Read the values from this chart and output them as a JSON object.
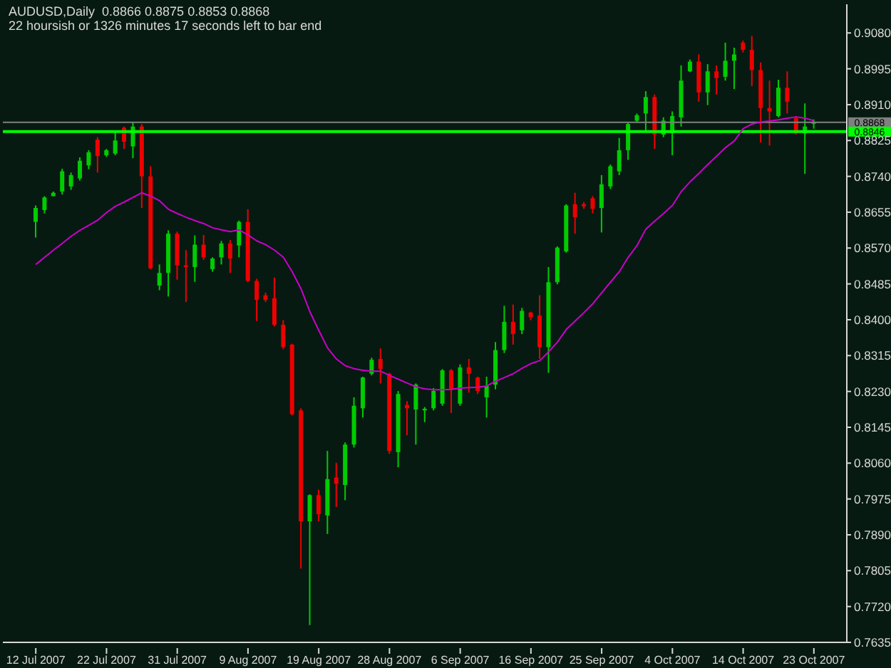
{
  "chart_data": {
    "type": "candlestick",
    "title": "AUDUSD,Daily  0.8866 0.8875 0.8853 0.8868",
    "subtitle": "22 hoursish or 1326 minutes 17 seconds left to bar end",
    "categories": [
      "12 Jul 2007",
      null,
      null,
      null,
      null,
      null,
      null,
      null,
      "22 Jul 2007",
      null,
      null,
      null,
      null,
      null,
      null,
      null,
      "31 Jul 2007",
      null,
      null,
      null,
      null,
      null,
      null,
      null,
      "9 Aug 2007",
      null,
      null,
      null,
      null,
      null,
      null,
      null,
      "19 Aug 2007",
      null,
      null,
      null,
      null,
      null,
      null,
      null,
      "28 Aug 2007",
      null,
      null,
      null,
      null,
      null,
      null,
      null,
      "6 Sep 2007",
      null,
      null,
      null,
      null,
      null,
      null,
      null,
      "16 Sep 2007",
      null,
      null,
      null,
      null,
      null,
      null,
      null,
      "25 Sep 2007",
      null,
      null,
      null,
      null,
      null,
      null,
      null,
      "4 Oct 2007",
      null,
      null,
      null,
      null,
      null,
      null,
      null,
      "14 Oct 2007",
      null,
      null,
      null,
      null,
      null,
      null,
      null,
      "23 Oct 2007"
    ],
    "series": [
      {
        "ohlc": [
          [
            0.8632,
            0.8671,
            0.8595,
            0.8665
          ],
          [
            0.866,
            0.8693,
            0.8652,
            0.869
          ],
          [
            0.8693,
            0.8704,
            0.8693,
            0.8701
          ],
          [
            0.8704,
            0.8758,
            0.8697,
            0.8752
          ],
          [
            0.8716,
            0.8749,
            0.8708,
            0.8743
          ],
          [
            0.8735,
            0.8785,
            0.873,
            0.8777
          ],
          [
            0.8766,
            0.8802,
            0.8757,
            0.8797
          ],
          [
            0.8827,
            0.8833,
            0.8749,
            0.8788
          ],
          [
            0.879,
            0.8805,
            0.8786,
            0.8802
          ],
          [
            0.8794,
            0.8844,
            0.879,
            0.8825
          ],
          [
            0.8855,
            0.8858,
            0.8805,
            0.8822
          ],
          [
            0.8811,
            0.8869,
            0.8783,
            0.8858
          ],
          [
            0.8858,
            0.8864,
            0.8665,
            0.874
          ],
          [
            0.874,
            0.8764,
            0.852,
            0.8522
          ],
          [
            0.8481,
            0.8531,
            0.847,
            0.8511
          ],
          [
            0.8511,
            0.8612,
            0.8455,
            0.8604
          ],
          [
            0.8604,
            0.8609,
            0.8495,
            0.8529
          ],
          [
            0.8529,
            0.8565,
            0.8442,
            0.8525
          ],
          [
            0.8525,
            0.86,
            0.849,
            0.8578
          ],
          [
            0.8578,
            0.8601,
            0.8542,
            0.8548
          ],
          [
            0.852,
            0.8548,
            0.8514,
            0.8545
          ],
          [
            0.8548,
            0.8587,
            0.8531,
            0.8581
          ],
          [
            0.8581,
            0.8589,
            0.8511,
            0.8545
          ],
          [
            0.8576,
            0.8635,
            0.8548,
            0.8632
          ],
          [
            0.8632,
            0.8662,
            0.8489,
            0.8492
          ],
          [
            0.8492,
            0.8497,
            0.8397,
            0.8447
          ],
          [
            0.8458,
            0.8464,
            0.8442,
            0.8447
          ],
          [
            0.8451,
            0.85,
            0.8384,
            0.8388
          ],
          [
            0.8388,
            0.8399,
            0.833,
            0.8335
          ],
          [
            0.8341,
            0.8343,
            0.8173,
            0.8176
          ],
          [
            0.8185,
            0.819,
            0.781,
            0.7922
          ],
          [
            0.7922,
            0.7986,
            0.7676,
            0.7984
          ],
          [
            0.7984,
            0.7997,
            0.7922,
            0.7939
          ],
          [
            0.7936,
            0.8089,
            0.7892,
            0.8022
          ],
          [
            0.8026,
            0.8061,
            0.7956,
            0.8011
          ],
          [
            0.8008,
            0.8109,
            0.7972,
            0.8104
          ],
          [
            0.8104,
            0.8216,
            0.8097,
            0.8196
          ],
          [
            0.819,
            0.8265,
            0.8168,
            0.8263
          ],
          [
            0.8272,
            0.831,
            0.8268,
            0.8305
          ],
          [
            0.8307,
            0.8332,
            0.8249,
            0.8283
          ],
          [
            0.8272,
            0.8274,
            0.8082,
            0.8089
          ],
          [
            0.8086,
            0.8231,
            0.805,
            0.8224
          ],
          [
            0.8198,
            0.8207,
            0.8126,
            0.819
          ],
          [
            0.8187,
            0.8249,
            0.8104,
            0.8246
          ],
          [
            0.8185,
            0.8193,
            0.8157,
            0.8189
          ],
          [
            0.819,
            0.8238,
            0.8185,
            0.8231
          ],
          [
            0.8201,
            0.8283,
            0.8196,
            0.828
          ],
          [
            0.828,
            0.8283,
            0.8179,
            0.8235
          ],
          [
            0.8201,
            0.8294,
            0.8196,
            0.8287
          ],
          [
            0.8287,
            0.8307,
            0.8227,
            0.8272
          ],
          [
            0.8263,
            0.8265,
            0.8224,
            0.8231
          ],
          [
            0.8216,
            0.8265,
            0.8168,
            0.8243
          ],
          [
            0.8246,
            0.8347,
            0.8235,
            0.8328
          ],
          [
            0.8328,
            0.8433,
            0.8321,
            0.8395
          ],
          [
            0.8395,
            0.8436,
            0.8341,
            0.8366
          ],
          [
            0.8375,
            0.8428,
            0.8366,
            0.8421
          ],
          [
            0.8417,
            0.8419,
            0.8399,
            0.8406
          ],
          [
            0.841,
            0.8458,
            0.8307,
            0.8335
          ],
          [
            0.8335,
            0.8525,
            0.8274,
            0.8489
          ],
          [
            0.8489,
            0.8574,
            0.8484,
            0.8571
          ],
          [
            0.8562,
            0.8674,
            0.8559,
            0.8671
          ],
          [
            0.8674,
            0.8701,
            0.8604,
            0.8643
          ],
          [
            0.8674,
            0.8679,
            0.8663,
            0.8669
          ],
          [
            0.8688,
            0.8693,
            0.8652,
            0.8663
          ],
          [
            0.8665,
            0.8743,
            0.8607,
            0.8721
          ],
          [
            0.8716,
            0.8768,
            0.871,
            0.8764
          ],
          [
            0.8752,
            0.8831,
            0.8743,
            0.8802
          ],
          [
            0.8802,
            0.8869,
            0.8779,
            0.8864
          ],
          [
            0.8872,
            0.8889,
            0.8869,
            0.8885
          ],
          [
            0.8889,
            0.8942,
            0.8846,
            0.8928
          ],
          [
            0.8928,
            0.8934,
            0.8805,
            0.8839
          ],
          [
            0.8839,
            0.888,
            0.8833,
            0.8872
          ],
          [
            0.8842,
            0.8894,
            0.879,
            0.8883
          ],
          [
            0.888,
            0.9003,
            0.8858,
            0.8967
          ],
          [
            0.8989,
            0.9017,
            0.8987,
            0.9012
          ],
          [
            0.9012,
            0.9029,
            0.8917,
            0.8939
          ],
          [
            0.8939,
            0.9006,
            0.8909,
            0.8989
          ],
          [
            0.8989,
            0.9003,
            0.8934,
            0.8973
          ],
          [
            0.8976,
            0.9057,
            0.8967,
            0.9014
          ],
          [
            0.9014,
            0.9045,
            0.8947,
            0.9029
          ],
          [
            0.9057,
            0.9062,
            0.9034,
            0.904
          ],
          [
            0.904,
            0.9073,
            0.8954,
            0.8992
          ],
          [
            0.8992,
            0.901,
            0.882,
            0.8902
          ],
          [
            0.8902,
            0.8967,
            0.8813,
            0.8894
          ],
          [
            0.8883,
            0.8969,
            0.888,
            0.895
          ],
          [
            0.895,
            0.8989,
            0.8889,
            0.8917
          ],
          [
            0.8878,
            0.8883,
            0.8839,
            0.8842
          ],
          [
            0.8842,
            0.8913,
            0.8746,
            0.8858
          ],
          [
            0.8866,
            0.8875,
            0.8853,
            0.8868
          ]
        ],
        "colors": [
          "#00cc00",
          "#00cc00",
          "#00cc00",
          "#00cc00",
          "#00cc00",
          "#00cc00",
          "#00cc00",
          "#ee0000",
          "#00cc00",
          "#00cc00",
          "#ee0000",
          "#00cc00",
          "#ee0000",
          "#ee0000",
          "#00cc00",
          "#00cc00",
          "#ee0000",
          "#ee0000",
          "#00cc00",
          "#ee0000",
          "#00cc00",
          "#00cc00",
          "#ee0000",
          "#00cc00",
          "#ee0000",
          "#ee0000",
          "#ee0000",
          "#ee0000",
          "#ee0000",
          "#ee0000",
          "#ee0000",
          "#00cc00",
          "#ee0000",
          "#00cc00",
          "#ee0000",
          "#00cc00",
          "#00cc00",
          "#00cc00",
          "#00cc00",
          "#ee0000",
          "#ee0000",
          "#00cc00",
          "#ee0000",
          "#00cc00",
          "#00cc00",
          "#00cc00",
          "#00cc00",
          "#ee0000",
          "#00cc00",
          "#ee0000",
          "#ee0000",
          "#00cc00",
          "#00cc00",
          "#00cc00",
          "#ee0000",
          "#00cc00",
          "#ee0000",
          "#ee0000",
          "#00cc00",
          "#00cc00",
          "#00cc00",
          "#ee0000",
          "#ee0000",
          "#ee0000",
          "#00cc00",
          "#00cc00",
          "#00cc00",
          "#00cc00",
          "#00cc00",
          "#00cc00",
          "#ee0000",
          "#00cc00",
          "#00cc00",
          "#00cc00",
          "#00cc00",
          "#ee0000",
          "#00cc00",
          "#ee0000",
          "#00cc00",
          "#00cc00",
          "#ee0000",
          "#ee0000",
          "#ee0000",
          "#ee0000",
          "#00cc00",
          "#ee0000",
          "#ee0000",
          "#00cc00",
          "#00cc00"
        ]
      },
      {
        "type": "line",
        "color": "#cc00cc",
        "values": [
          0.8531,
          0.8548,
          0.8565,
          0.8581,
          0.8598,
          0.8612,
          0.8624,
          0.8636,
          0.8654,
          0.8669,
          0.8679,
          0.869,
          0.8701,
          0.8693,
          0.8682,
          0.8662,
          0.8652,
          0.8643,
          0.8635,
          0.8628,
          0.8618,
          0.8613,
          0.8609,
          0.8613,
          0.8601,
          0.8587,
          0.8578,
          0.8565,
          0.8548,
          0.8514,
          0.8473,
          0.8419,
          0.8375,
          0.8333,
          0.8307,
          0.8291,
          0.8284,
          0.828,
          0.8278,
          0.8278,
          0.8268,
          0.8259,
          0.825,
          0.8241,
          0.8236,
          0.8234,
          0.8234,
          0.8235,
          0.8238,
          0.8239,
          0.824,
          0.8243,
          0.8254,
          0.8263,
          0.8272,
          0.8285,
          0.8296,
          0.8303,
          0.8324,
          0.8347,
          0.8377,
          0.8397,
          0.8417,
          0.8438,
          0.8464,
          0.8489,
          0.8514,
          0.8548,
          0.8576,
          0.8615,
          0.8634,
          0.8652,
          0.8671,
          0.8704,
          0.8727,
          0.8747,
          0.8768,
          0.8788,
          0.8808,
          0.8824,
          0.8853,
          0.8864,
          0.8869,
          0.8871,
          0.8874,
          0.8878,
          0.8881,
          0.8878,
          0.8872
        ]
      }
    ],
    "ylim": [
      0.7635,
      0.9148
    ],
    "yticks": [
      {
        "value": 0.908,
        "label": "0.9080"
      },
      {
        "value": 0.8995,
        "label": "0.8995"
      },
      {
        "value": 0.891,
        "label": "0.8910"
      },
      {
        "value": 0.8825,
        "label": "0.8825"
      },
      {
        "value": 0.874,
        "label": "0.8740"
      },
      {
        "value": 0.8655,
        "label": "0.8655"
      },
      {
        "value": 0.857,
        "label": "0.8570"
      },
      {
        "value": 0.8485,
        "label": "0.8485"
      },
      {
        "value": 0.84,
        "label": "0.8400"
      },
      {
        "value": 0.8315,
        "label": "0.8315"
      },
      {
        "value": 0.823,
        "label": "0.8230"
      },
      {
        "value": 0.8145,
        "label": "0.8145"
      },
      {
        "value": 0.806,
        "label": "0.8060"
      },
      {
        "value": 0.7975,
        "label": "0.7975"
      },
      {
        "value": 0.789,
        "label": "0.7890"
      },
      {
        "value": 0.7805,
        "label": "0.7805"
      },
      {
        "value": 0.772,
        "label": "0.7720"
      },
      {
        "value": 0.7635,
        "label": "0.7635"
      }
    ],
    "ref_lines": [
      {
        "axis": "y",
        "value": 0.8868,
        "label": "0.8868",
        "color": "#808080"
      },
      {
        "axis": "y",
        "value": 0.8846,
        "label": "0.8846",
        "color": "#00ff00"
      }
    ]
  }
}
